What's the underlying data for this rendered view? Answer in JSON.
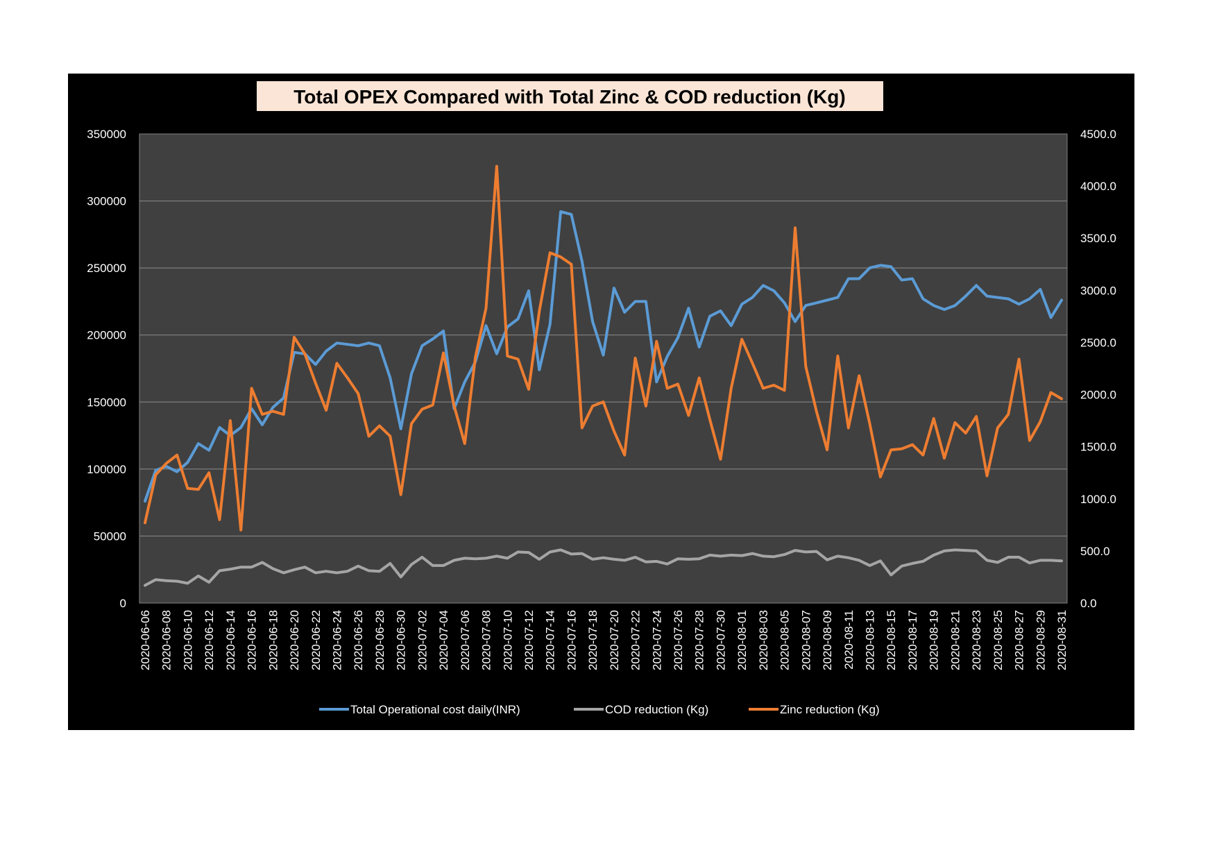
{
  "chart_data": {
    "type": "line",
    "title": "Total OPEX Compared with Total Zinc & COD reduction (Kg)",
    "x": [
      "2020-06-06",
      "2020-06-07",
      "2020-06-08",
      "2020-06-09",
      "2020-06-10",
      "2020-06-11",
      "2020-06-12",
      "2020-06-13",
      "2020-06-14",
      "2020-06-15",
      "2020-06-16",
      "2020-06-17",
      "2020-06-18",
      "2020-06-19",
      "2020-06-20",
      "2020-06-21",
      "2020-06-22",
      "2020-06-23",
      "2020-06-24",
      "2020-06-25",
      "2020-06-26",
      "2020-06-27",
      "2020-06-28",
      "2020-06-29",
      "2020-06-30",
      "2020-07-01",
      "2020-07-02",
      "2020-07-03",
      "2020-07-04",
      "2020-07-05",
      "2020-07-06",
      "2020-07-07",
      "2020-07-08",
      "2020-07-09",
      "2020-07-10",
      "2020-07-11",
      "2020-07-12",
      "2020-07-13",
      "2020-07-14",
      "2020-07-15",
      "2020-07-16",
      "2020-07-17",
      "2020-07-18",
      "2020-07-19",
      "2020-07-20",
      "2020-07-21",
      "2020-07-22",
      "2020-07-23",
      "2020-07-24",
      "2020-07-25",
      "2020-07-26",
      "2020-07-27",
      "2020-07-28",
      "2020-07-29",
      "2020-07-30",
      "2020-07-31",
      "2020-08-01",
      "2020-08-02",
      "2020-08-03",
      "2020-08-04",
      "2020-08-05",
      "2020-08-06",
      "2020-08-07",
      "2020-08-08",
      "2020-08-09",
      "2020-08-10",
      "2020-08-11",
      "2020-08-12",
      "2020-08-13",
      "2020-08-14",
      "2020-08-15",
      "2020-08-16",
      "2020-08-17",
      "2020-08-18",
      "2020-08-19",
      "2020-08-20",
      "2020-08-21",
      "2020-08-22",
      "2020-08-23",
      "2020-08-24",
      "2020-08-25",
      "2020-08-26",
      "2020-08-27",
      "2020-08-28",
      "2020-08-29",
      "2020-08-30",
      "2020-08-31"
    ],
    "x_tick_labels": [
      "2020-06-06",
      "2020-06-08",
      "2020-06-10",
      "2020-06-12",
      "2020-06-14",
      "2020-06-16",
      "2020-06-18",
      "2020-06-20",
      "2020-06-22",
      "2020-06-24",
      "2020-06-26",
      "2020-06-28",
      "2020-06-30",
      "2020-07-02",
      "2020-07-04",
      "2020-07-06",
      "2020-07-08",
      "2020-07-10",
      "2020-07-12",
      "2020-07-14",
      "2020-07-16",
      "2020-07-18",
      "2020-07-20",
      "2020-07-22",
      "2020-07-24",
      "2020-07-26",
      "2020-07-28",
      "2020-07-30",
      "2020-08-01",
      "2020-08-03",
      "2020-08-05",
      "2020-08-07",
      "2020-08-09",
      "2020-08-11",
      "2020-08-13",
      "2020-08-15",
      "2020-08-17",
      "2020-08-19",
      "2020-08-21",
      "2020-08-23",
      "2020-08-25",
      "2020-08-27",
      "2020-08-29",
      "2020-08-31"
    ],
    "y_left": {
      "min": 0,
      "max": 350000,
      "ticks": [
        "0",
        "50000",
        "100000",
        "150000",
        "200000",
        "250000",
        "300000",
        "350000"
      ]
    },
    "y_right": {
      "min": 0,
      "max": 4500,
      "ticks": [
        "0.0",
        "500.0",
        "1000.0",
        "1500.0",
        "2000.0",
        "2500.0",
        "3000.0",
        "3500.0",
        "4000.0",
        "4500.0"
      ]
    },
    "grid": true,
    "legend_position": "bottom",
    "series": [
      {
        "name": "Total Operational cost daily(INR)",
        "axis": "left",
        "color": "#5b9bd5",
        "values": [
          76000,
          99000,
          102000,
          98000,
          105000,
          119000,
          114000,
          131000,
          125000,
          131000,
          145000,
          133000,
          146000,
          153000,
          187000,
          186000,
          178000,
          188000,
          194000,
          193000,
          192000,
          194000,
          192000,
          168000,
          130000,
          171000,
          192000,
          197000,
          203000,
          145000,
          165000,
          180000,
          207000,
          186000,
          206000,
          212000,
          233000,
          174000,
          208000,
          292000,
          290000,
          255000,
          210000,
          185000,
          235000,
          217000,
          225000,
          225000,
          165000,
          184000,
          198000,
          220000,
          191000,
          214000,
          218000,
          207000,
          223000,
          228000,
          237000,
          233000,
          224000,
          210000,
          222000,
          224000,
          226000,
          228000,
          242000,
          242000,
          250000,
          252000,
          251000,
          241000,
          242000,
          227000,
          222000,
          219000,
          222000,
          229000,
          237000,
          229000,
          228000,
          227000,
          223000,
          227000,
          234000,
          213000,
          226000
        ]
      },
      {
        "name": "COD reduction (Kg)",
        "axis": "right",
        "color": "#a5a5a5",
        "values": [
          170,
          225,
          215,
          210,
          190,
          260,
          200,
          310,
          325,
          345,
          345,
          390,
          330,
          290,
          320,
          345,
          290,
          305,
          290,
          305,
          355,
          310,
          305,
          380,
          250,
          370,
          440,
          360,
          360,
          410,
          430,
          425,
          430,
          450,
          430,
          490,
          485,
          420,
          490,
          510,
          470,
          475,
          420,
          435,
          420,
          410,
          440,
          395,
          400,
          375,
          425,
          420,
          425,
          460,
          450,
          460,
          455,
          475,
          450,
          445,
          465,
          505,
          490,
          495,
          415,
          450,
          435,
          410,
          360,
          405,
          270,
          355,
          380,
          400,
          460,
          500,
          510,
          505,
          500,
          410,
          390,
          440,
          440,
          385,
          410,
          410,
          405
        ]
      },
      {
        "name": "Zinc reduction (Kg)",
        "axis": "right",
        "color": "#ed7d31",
        "values": [
          770,
          1230,
          1340,
          1420,
          1100,
          1090,
          1250,
          800,
          1750,
          700,
          2060,
          1810,
          1840,
          1810,
          2550,
          2390,
          2110,
          1850,
          2300,
          2160,
          2010,
          1600,
          1700,
          1600,
          1040,
          1720,
          1860,
          1900,
          2400,
          1890,
          1530,
          2360,
          2830,
          4190,
          2370,
          2340,
          2050,
          2800,
          3360,
          3320,
          3250,
          1680,
          1890,
          1930,
          1650,
          1420,
          2350,
          1890,
          2510,
          2060,
          2100,
          1800,
          2160,
          1760,
          1380,
          2060,
          2530,
          2300,
          2060,
          2090,
          2040,
          3600,
          2270,
          1840,
          1470,
          2370,
          1680,
          2180,
          1720,
          1210,
          1470,
          1480,
          1520,
          1420,
          1770,
          1390,
          1730,
          1630,
          1790,
          1220,
          1680,
          1810,
          2340,
          1560,
          1740,
          2020,
          1960
        ]
      }
    ]
  }
}
